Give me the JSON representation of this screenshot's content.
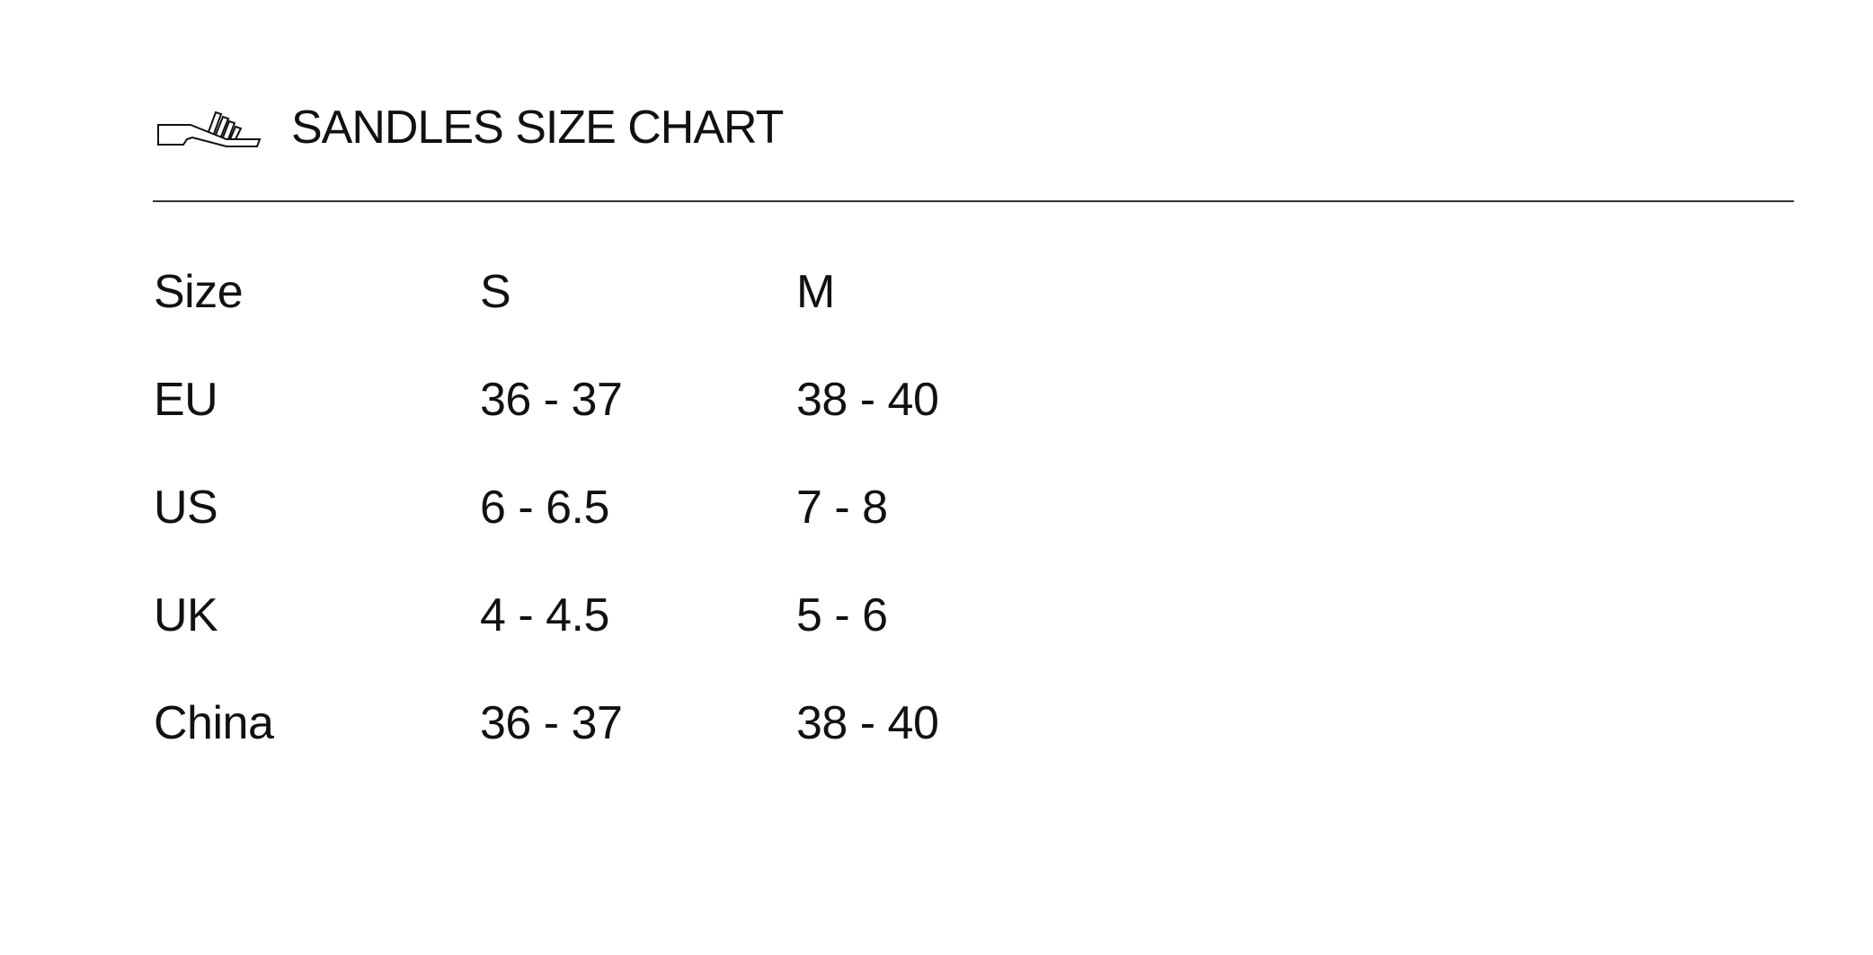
{
  "header": {
    "title": "SANDLES SIZE CHART",
    "icon": "sandal-icon"
  },
  "table": {
    "columns": [
      "Size",
      "S",
      "M"
    ],
    "rows": [
      [
        "EU",
        "36 - 37",
        "38 - 40"
      ],
      [
        "US",
        "6 - 6.5",
        "7 - 8"
      ],
      [
        "UK",
        "4 - 4.5",
        "5 - 6"
      ],
      [
        "China",
        "36 - 37",
        "38 - 40"
      ]
    ]
  }
}
